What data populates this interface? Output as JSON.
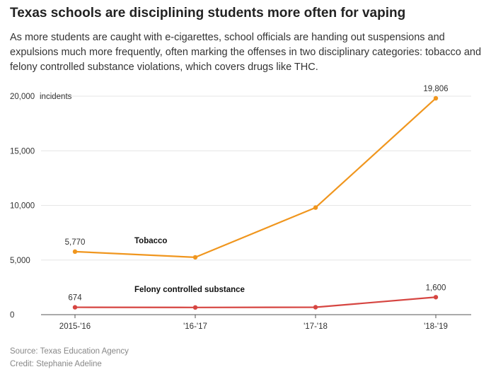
{
  "title": "Texas schools are disciplining students more often for vaping",
  "subtitle": "As more students are caught with e-cigarettes, school officials are handing out suspensions and expulsions much more frequently, often marking the offenses in two disciplinary categories: tobacco and felony controlled substance violations, which covers drugs like THC.",
  "source": "Source: Texas Education Agency",
  "credit": "Credit: Stephanie Adeline",
  "colors": {
    "tobacco": "#f0961e",
    "felony": "#d64541",
    "grid": "#e6e6e6",
    "axis": "#555555"
  },
  "chart_data": {
    "type": "line",
    "categories": [
      "2015-'16",
      "'16-'17",
      "'17-'18",
      "'18-'19"
    ],
    "ylim": [
      0,
      20000
    ],
    "yticks": [
      0,
      5000,
      10000,
      15000,
      20000
    ],
    "ytick_labels": [
      "0",
      "5,000",
      "10,000",
      "15,000",
      "20,000"
    ],
    "ylabel_unit": "incidents",
    "grid": true,
    "series": [
      {
        "name": "Tobacco",
        "values": [
          5770,
          5250,
          9800,
          19806
        ],
        "labels": [
          "5,770",
          "",
          "",
          "19,806"
        ]
      },
      {
        "name": "Felony controlled substance",
        "values": [
          674,
          660,
          680,
          1600
        ],
        "labels": [
          "674",
          "",
          "",
          "1,600"
        ]
      }
    ]
  }
}
